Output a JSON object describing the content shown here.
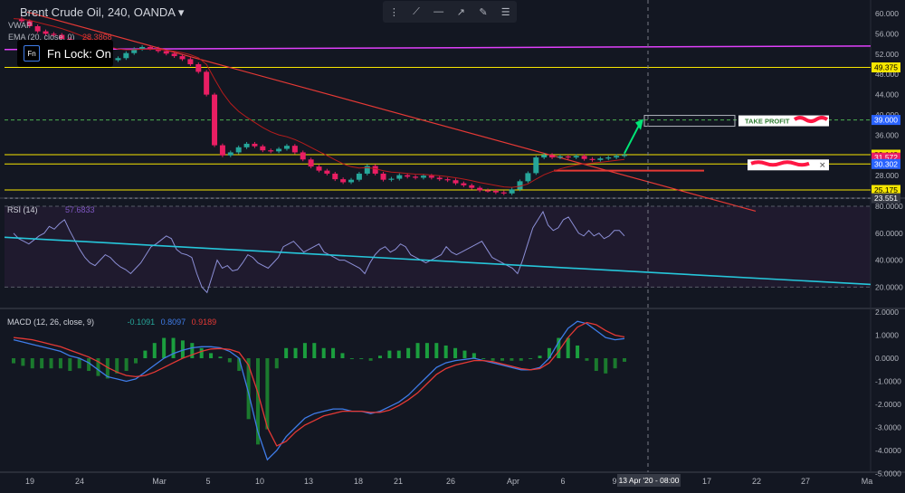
{
  "header": {
    "title": "Brent Crude Oil, 240, OANDA",
    "vwap_label": "VWAP",
    "ema_label": "EMA (20, close, 0)",
    "ema_value": "28.3868"
  },
  "overlay": {
    "fn_icon": "Fn",
    "fn_lock": "Fn Lock: On"
  },
  "toolbar": {
    "icons": [
      "grip-icon",
      "trend-line-icon",
      "horizontal-line-icon",
      "ray-icon",
      "brush-icon",
      "menu-icon"
    ]
  },
  "price_axis": {
    "ticks": [
      "60.000",
      "56.000",
      "52.000",
      "48.000",
      "44.000",
      "40.000",
      "36.000",
      "32.000",
      "28.000",
      "24.000"
    ]
  },
  "price_tags": [
    {
      "label": "49.375",
      "y": 49.375,
      "bg": "#f7e600",
      "fg": "#000"
    },
    {
      "label": "39.000",
      "y": 39.0,
      "bg": "#2962ff",
      "fg": "#fff"
    },
    {
      "label": "32.142",
      "y": 32.142,
      "bg": "#f7e600",
      "fg": "#000"
    },
    {
      "label": "31.572",
      "y": 31.572,
      "bg": "#e91e63",
      "fg": "#fff"
    },
    {
      "label": "30.302",
      "y": 30.302,
      "bg": "#2962ff",
      "fg": "#fff"
    },
    {
      "label": "25.175",
      "y": 25.175,
      "bg": "#f7e600",
      "fg": "#000"
    },
    {
      "label": "23.551",
      "y": 23.551,
      "bg": "#363a45",
      "fg": "#fff"
    }
  ],
  "annotations": {
    "take_profit": "TAKE PROFIT"
  },
  "rsi": {
    "label": "RSI (14)",
    "value": "57.6833",
    "ticks": [
      "80.0000",
      "60.0000",
      "40.0000",
      "20.0000"
    ]
  },
  "macd": {
    "label": "MACD (12, 26, close, 9)",
    "hist": "-0.1091",
    "macd": "0.8097",
    "signal": "0.9189",
    "ticks": [
      "2.0000",
      "1.0000",
      "0.0000",
      "-1.0000",
      "-2.0000",
      "-3.0000",
      "-4.0000",
      "-5.0000"
    ]
  },
  "time_axis": {
    "labels": [
      "19",
      "24",
      "Mar",
      "5",
      "10",
      "13",
      "18",
      "21",
      "26",
      "Apr",
      "6",
      "9",
      "17",
      "22",
      "27",
      "Ma"
    ],
    "cursor": "13 Apr '20 - 08:00"
  },
  "chart_data": {
    "type": "candlestick",
    "price_line": [
      59,
      58.5,
      57.5,
      56.5,
      56,
      55.8,
      55,
      54,
      53.2,
      52.5,
      51.5,
      51,
      50.8,
      51.2,
      52.2,
      53,
      53.4,
      53.1,
      52.6,
      52.1,
      51.6,
      51,
      50,
      48.5,
      44,
      34,
      32,
      32.6,
      33.6,
      34.3,
      33.8,
      33,
      32.8,
      33.3,
      33.9,
      32.6,
      31.2,
      29.8,
      29,
      28.4,
      27.3,
      26.7,
      27.2,
      28.4,
      29.9,
      28.4,
      27.2,
      27.4,
      28.1,
      27.8,
      27.6,
      28,
      27.6,
      27.3,
      27.1,
      26.5,
      26.1,
      25.6,
      25.1,
      25,
      24.7,
      24.5,
      25.3,
      26.9,
      28.5,
      31.6,
      32.1,
      31.6,
      31.8,
      31.6,
      31.9,
      31.3,
      31.1,
      31.4,
      31.6,
      31.9,
      32.1
    ],
    "rsi_line": [
      60,
      56,
      54,
      52,
      55,
      58,
      60,
      65,
      63,
      67,
      70,
      62,
      55,
      48,
      42,
      38,
      36,
      40,
      44,
      42,
      38,
      35,
      33,
      30,
      34,
      38,
      44,
      50,
      52,
      55,
      58,
      56,
      48,
      45,
      44,
      42,
      30,
      20,
      16,
      28,
      40,
      34,
      36,
      32,
      33,
      38,
      44,
      42,
      38,
      36,
      34,
      38,
      42,
      50,
      52,
      54,
      50,
      46,
      48,
      50,
      52,
      46,
      44,
      42,
      40,
      40,
      38,
      36,
      34,
      30,
      38,
      44,
      48,
      50,
      46,
      48,
      52,
      50,
      44,
      42,
      40,
      38,
      40,
      42,
      44,
      50,
      46,
      44,
      46,
      48,
      50,
      52,
      54,
      48,
      42,
      40,
      38,
      36,
      34,
      30,
      40,
      52,
      64,
      70,
      76,
      66,
      62,
      64,
      70,
      72,
      66,
      60,
      58,
      62,
      58,
      60,
      56,
      58,
      62,
      62,
      58
    ],
    "macd_line": [
      0.8,
      0.7,
      0.6,
      0.5,
      0.4,
      0.3,
      0.1,
      0.0,
      -0.2,
      -0.5,
      -0.8,
      -0.9,
      -1.0,
      -0.9,
      -0.6,
      -0.3,
      0.0,
      0.2,
      0.35,
      0.45,
      0.5,
      0.5,
      0.45,
      0.3,
      0.0,
      -1.5,
      -3.2,
      -4.4,
      -4.0,
      -3.4,
      -3.0,
      -2.6,
      -2.4,
      -2.3,
      -2.2,
      -2.2,
      -2.3,
      -2.3,
      -2.4,
      -2.3,
      -2.1,
      -1.9,
      -1.6,
      -1.2,
      -0.8,
      -0.4,
      -0.2,
      -0.1,
      -0.05,
      0.0,
      -0.1,
      -0.2,
      -0.3,
      -0.4,
      -0.5,
      -0.5,
      -0.4,
      0.0,
      0.7,
      1.3,
      1.6,
      1.5,
      1.2,
      0.9,
      0.8,
      0.85
    ],
    "signal_line": [
      0.9,
      0.85,
      0.8,
      0.7,
      0.6,
      0.5,
      0.35,
      0.2,
      0.05,
      -0.15,
      -0.4,
      -0.6,
      -0.75,
      -0.8,
      -0.75,
      -0.6,
      -0.4,
      -0.2,
      0.0,
      0.15,
      0.3,
      0.4,
      0.42,
      0.38,
      0.25,
      -0.3,
      -1.5,
      -3.0,
      -3.8,
      -3.6,
      -3.2,
      -2.9,
      -2.7,
      -2.5,
      -2.4,
      -2.3,
      -2.3,
      -2.3,
      -2.35,
      -2.35,
      -2.25,
      -2.05,
      -1.8,
      -1.5,
      -1.1,
      -0.7,
      -0.45,
      -0.3,
      -0.2,
      -0.1,
      -0.1,
      -0.15,
      -0.25,
      -0.35,
      -0.45,
      -0.5,
      -0.45,
      -0.2,
      0.3,
      0.9,
      1.35,
      1.55,
      1.45,
      1.2,
      1.0,
      0.92
    ],
    "levels": [
      49.375,
      39.0,
      32.142,
      30.302,
      25.175
    ],
    "series": [
      {
        "name": "VWAP",
        "color": "#e040fb"
      },
      {
        "name": "EMA (20, close, 0)",
        "color": "#b71c1c"
      }
    ]
  }
}
